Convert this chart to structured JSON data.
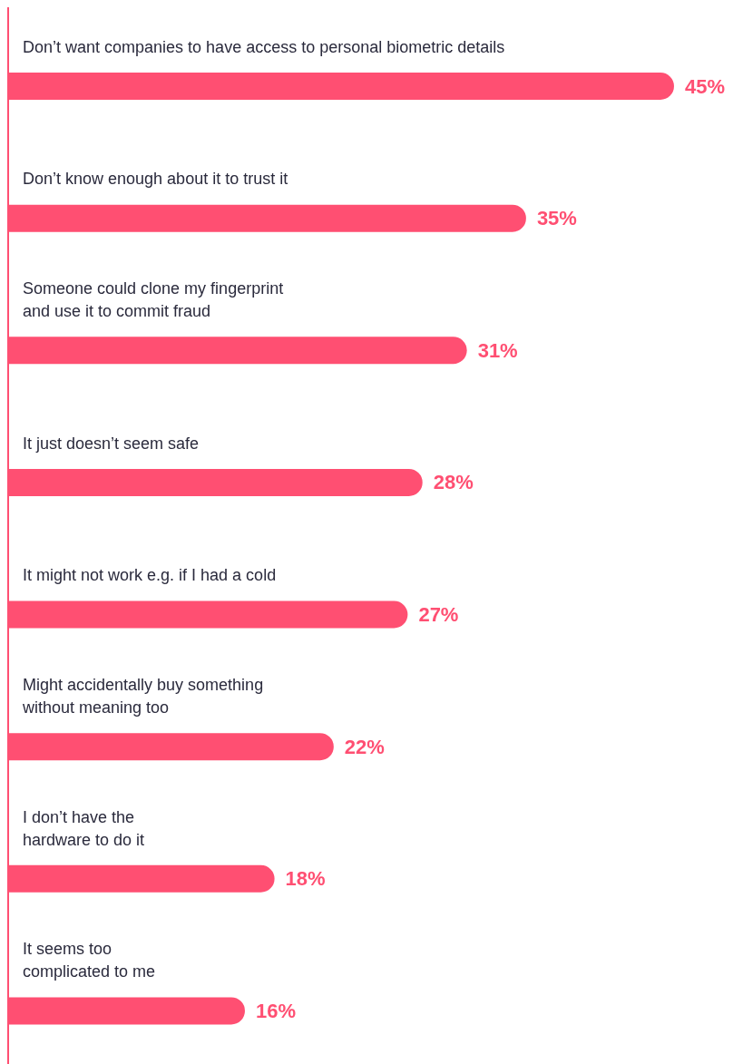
{
  "chart_data": {
    "type": "bar",
    "orientation": "horizontal",
    "categories": [
      "Don’t want companies to have access to personal biometric details",
      "Don’t know enough about it to trust it",
      "Someone could clone my fingerprint\nand use it to commit fraud",
      "It just doesn’t seem safe",
      "It might not work e.g. if I had a cold",
      "Might accidentally buy something\nwithout meaning too",
      "I don’t have the\nhardware to do it",
      "It seems too\ncomplicated to me"
    ],
    "values": [
      45,
      35,
      31,
      28,
      27,
      22,
      18,
      16
    ],
    "value_labels": [
      "45%",
      "35%",
      "31%",
      "28%",
      "27%",
      "22%",
      "18%",
      "16%"
    ],
    "color": "#ff4f72",
    "grid": false,
    "legend": false
  }
}
